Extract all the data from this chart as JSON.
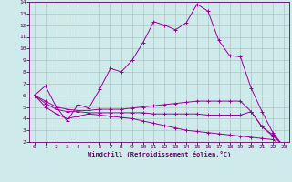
{
  "xlabel": "Windchill (Refroidissement éolien,°C)",
  "background_color": "#ceeaea",
  "line_color": "#990099",
  "xlim": [
    -0.5,
    23.5
  ],
  "ylim": [
    2,
    14
  ],
  "xticks": [
    0,
    1,
    2,
    3,
    4,
    5,
    6,
    7,
    8,
    9,
    10,
    11,
    12,
    13,
    14,
    15,
    16,
    17,
    18,
    19,
    20,
    21,
    22,
    23
  ],
  "yticks": [
    2,
    3,
    4,
    5,
    6,
    7,
    8,
    9,
    10,
    11,
    12,
    13,
    14
  ],
  "lines": [
    {
      "x": [
        0,
        1,
        2,
        3,
        4,
        5,
        6,
        7,
        8,
        9,
        10,
        11,
        12,
        13,
        14,
        15,
        16,
        17,
        18,
        19,
        20,
        21,
        22,
        23
      ],
      "y": [
        6.0,
        6.8,
        5.0,
        3.8,
        5.2,
        4.9,
        6.5,
        8.3,
        8.0,
        9.0,
        10.5,
        12.3,
        12.0,
        11.6,
        12.2,
        13.8,
        13.2,
        10.7,
        9.4,
        9.3,
        6.6,
        4.6,
        2.8,
        1.6
      ]
    },
    {
      "x": [
        0,
        1,
        2,
        3,
        4,
        5,
        6,
        7,
        8,
        9,
        10,
        11,
        12,
        13,
        14,
        15,
        16,
        17,
        18,
        19,
        20,
        21,
        22,
        23
      ],
      "y": [
        6.0,
        5.5,
        5.0,
        4.8,
        4.7,
        4.7,
        4.8,
        4.8,
        4.8,
        4.9,
        5.0,
        5.1,
        5.2,
        5.3,
        5.4,
        5.5,
        5.5,
        5.5,
        5.5,
        5.5,
        4.6,
        3.3,
        2.6,
        1.7
      ]
    },
    {
      "x": [
        0,
        1,
        2,
        3,
        4,
        5,
        6,
        7,
        8,
        9,
        10,
        11,
        12,
        13,
        14,
        15,
        16,
        17,
        18,
        19,
        20,
        21,
        22,
        23
      ],
      "y": [
        6.0,
        5.3,
        4.8,
        4.6,
        4.6,
        4.5,
        4.5,
        4.5,
        4.5,
        4.5,
        4.5,
        4.4,
        4.4,
        4.4,
        4.4,
        4.4,
        4.3,
        4.3,
        4.3,
        4.3,
        4.6,
        3.3,
        2.5,
        1.7
      ]
    },
    {
      "x": [
        0,
        1,
        2,
        3,
        4,
        5,
        6,
        7,
        8,
        9,
        10,
        11,
        12,
        13,
        14,
        15,
        16,
        17,
        18,
        19,
        20,
        21,
        22,
        23
      ],
      "y": [
        6.0,
        5.0,
        4.4,
        4.0,
        4.2,
        4.4,
        4.3,
        4.2,
        4.1,
        4.0,
        3.8,
        3.6,
        3.4,
        3.2,
        3.0,
        2.9,
        2.8,
        2.7,
        2.6,
        2.5,
        2.4,
        2.3,
        2.2,
        1.6
      ]
    }
  ]
}
